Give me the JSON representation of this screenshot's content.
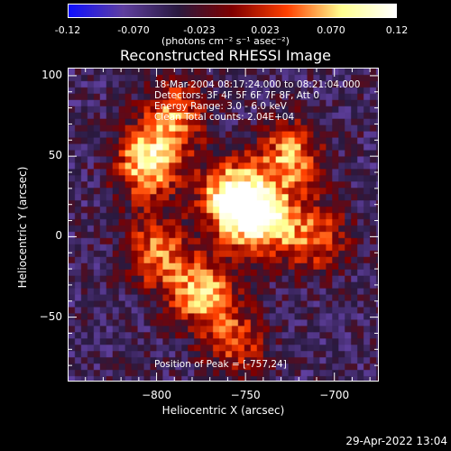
{
  "chart_data": {
    "type": "heatmap",
    "title": "Reconstructed RHESSI Image",
    "xlabel": "Heliocentric X (arcsec)",
    "ylabel": "Heliocentric Y (arcsec)",
    "xlim": [
      -850,
      -675
    ],
    "ylim": [
      -90,
      105
    ],
    "x_ticks": [
      -800,
      -750,
      -700
    ],
    "y_ticks": [
      -50,
      0,
      50,
      100
    ],
    "colorbar": {
      "ticks": [
        "-0.12",
        "-0.070",
        "-0.023",
        "0.023",
        "0.070",
        "0.12"
      ],
      "range": [
        -0.12,
        0.12
      ],
      "unit_label": "(photons cm⁻² s⁻¹ asec⁻²)",
      "colors": [
        "#1010ff",
        "#6040a0",
        "#2a1a40",
        "#800000",
        "#ff4000",
        "#ffff90",
        "#ffffff"
      ]
    },
    "annotations": {
      "time": "18-Mar-2004 08:17:24.000 to 08:21:04.000",
      "detectors": "Detectors: 3F 4F 5F 6F 7F 8F, Att 0",
      "energy": "Energy Range: 3.0 - 6.0 keV",
      "clean": "Clean     Total counts: 2.04E+04",
      "peak": "Position of Peak = [-757,24]"
    },
    "peak_position": [
      -757,
      24
    ],
    "sources": [
      {
        "x": -757,
        "y": 24,
        "peak": 0.12
      },
      {
        "x": -740,
        "y": 10,
        "peak": 0.09
      },
      {
        "x": -805,
        "y": 45,
        "peak": 0.09
      },
      {
        "x": -775,
        "y": -35,
        "peak": 0.07
      },
      {
        "x": -725,
        "y": 50,
        "peak": 0.06
      },
      {
        "x": -790,
        "y": 75,
        "peak": 0.05
      },
      {
        "x": -710,
        "y": 0,
        "peak": 0.04
      },
      {
        "x": -800,
        "y": -10,
        "peak": 0.05
      },
      {
        "x": -755,
        "y": -65,
        "peak": 0.03
      }
    ]
  },
  "footer": {
    "timestamp": "29-Apr-2022 13:04"
  }
}
